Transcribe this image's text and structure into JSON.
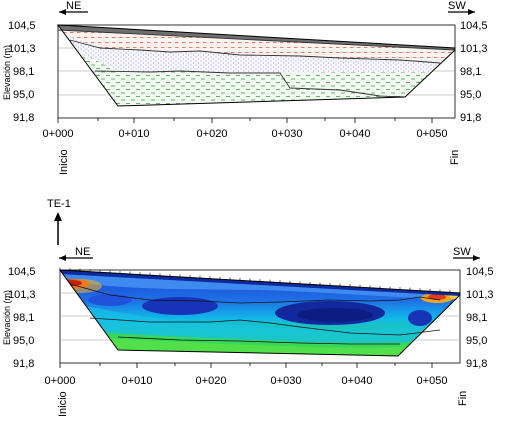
{
  "labels": {
    "dir_left": "NE",
    "dir_right": "SW",
    "y_axis_title": "Elevación (m)",
    "start_label": "Inicio",
    "end_label": "Fin",
    "section_id": "TE-1"
  },
  "y_ticks": [
    "104,5",
    "101,3",
    "98,1",
    "95,0",
    "91,8"
  ],
  "x_ticks": [
    "0+000",
    "0+010",
    "0+020",
    "0+030",
    "0+040",
    "0+050"
  ],
  "colors": {
    "fill_layer": "#6e6e6e",
    "fill_red_hatch": "#e07060",
    "fill_blue_dots": "#8a8ad0",
    "fill_green_dashes": "#5aa95a",
    "resistivity_blue": "#1e4bd6",
    "resistivity_green": "#2bd26b",
    "resistivity_red": "#e23a1a"
  }
}
